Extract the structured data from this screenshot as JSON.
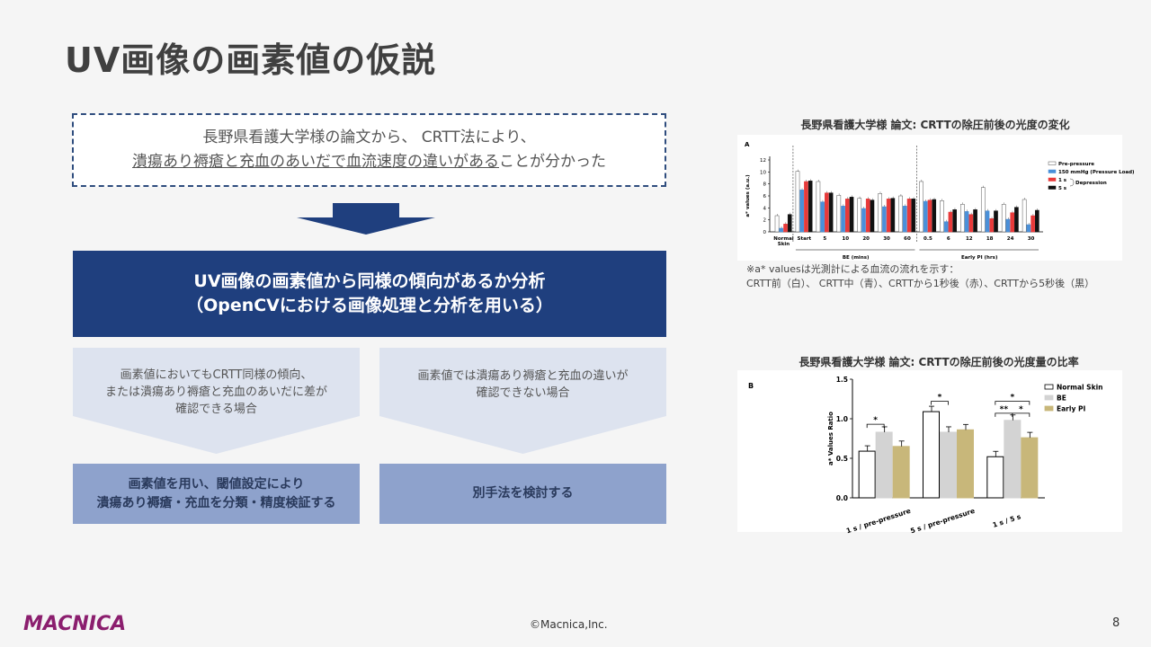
{
  "title": "UV画像の画素値の仮説",
  "finding": {
    "line1": "長野県看護大学様の論文から、 CRTT法により、",
    "line2_underlined": "潰瘍あり褥瘡と充血のあいだで血流速度の違いがある",
    "line2_rest": "ことが分かった"
  },
  "analysis": {
    "line1": "UV画像の画素値から同様の傾向があるか分析",
    "line2": "（OpenCVにおける画像処理と分析を用いる）"
  },
  "branches": [
    {
      "condition": "画素値においてもCRTT同様の傾向、\nまたは潰瘍あり褥瘡と充血のあいだに差が\n確認できる場合",
      "action": "画素値を用い、閾値設定により\n潰瘍あり褥瘡・充血を分類・精度検証する"
    },
    {
      "condition": "画素値では潰瘍あり褥瘡と充血の違いが\n確認できない場合",
      "action": "別手法を検討する"
    }
  ],
  "colors": {
    "navy": "#1f3f7e",
    "light_blue": "#dde3ef",
    "mid_blue": "#8ea2cc",
    "accent_magenta": "#8b1e6e"
  },
  "chart_data": [
    {
      "type": "bar",
      "title": "長野県看護大学様 論文: CRTTの除圧前後の光度の変化",
      "panel_label": "A",
      "ylabel": "a* values (a.u.)",
      "ylim": [
        0,
        12
      ],
      "yticks": [
        0,
        2,
        4,
        6,
        8,
        10,
        12
      ],
      "categories": [
        "Normal Skin",
        "Start",
        "5",
        "10",
        "20",
        "30",
        "60",
        "0.5",
        "6",
        "12",
        "18",
        "24",
        "30"
      ],
      "group_labels": [
        {
          "label": "BE (mins)"
        },
        {
          "label": "Early PI (hrs)"
        }
      ],
      "series": [
        {
          "name": "Pre-pressure",
          "color": "#ffffff",
          "values": [
            2.7,
            10.1,
            8.4,
            6.1,
            5.6,
            6.4,
            6.0,
            8.4,
            5.2,
            4.6,
            7.4,
            4.6,
            5.4
          ]
        },
        {
          "name": "150 mmHg (Pressure Load)",
          "color": "#4a90d9",
          "values": [
            0.6,
            7.0,
            5.0,
            4.3,
            3.9,
            4.2,
            4.3,
            5.1,
            1.7,
            3.4,
            3.5,
            2.1,
            1.2
          ]
        },
        {
          "name": "1 s",
          "color": "#e83a3a",
          "values": [
            1.3,
            8.4,
            6.5,
            5.5,
            5.5,
            5.5,
            5.5,
            5.3,
            3.3,
            2.9,
            2.2,
            3.2,
            2.7
          ]
        },
        {
          "name": "5 s",
          "color": "#111111",
          "values": [
            2.9,
            8.5,
            6.5,
            5.8,
            5.3,
            5.6,
            5.5,
            5.4,
            3.7,
            3.7,
            3.5,
            4.1,
            3.6
          ]
        }
      ],
      "legend_bracket_label": "Depression",
      "legend": "top-right",
      "note_line1": "※a* valuesは光測計による血流の流れを示す：",
      "note_line2": "CRTT前（白）、 CRTT中（青）、CRTTから1秒後（赤）、CRTTから5秒後（黒）"
    },
    {
      "type": "bar",
      "title": "長野県看護大学様 論文: CRTTの除圧前後の光度量の比率",
      "panel_label": "B",
      "ylabel": "a* Values Ratio",
      "ylim": [
        0,
        1.5
      ],
      "yticks": [
        0.0,
        0.5,
        1.0,
        1.5
      ],
      "categories": [
        "1 s / pre-pressure",
        "5 s / pre-pressure",
        "1 s / 5 s"
      ],
      "series": [
        {
          "name": "Normal Skin",
          "color": "#ffffff",
          "values": [
            0.59,
            1.09,
            0.52
          ]
        },
        {
          "name": "BE",
          "color": "#d3d3d3",
          "values": [
            0.83,
            0.83,
            0.98
          ]
        },
        {
          "name": "Early PI",
          "color": "#c8b77a",
          "values": [
            0.65,
            0.86,
            0.76
          ]
        }
      ],
      "significance": [
        "*",
        "*",
        "*",
        "**",
        "*"
      ],
      "legend": "top-right"
    }
  ],
  "footer": {
    "copyright": "©Macnica,Inc.",
    "page_number": "8",
    "logo_text": "MACNICA"
  }
}
